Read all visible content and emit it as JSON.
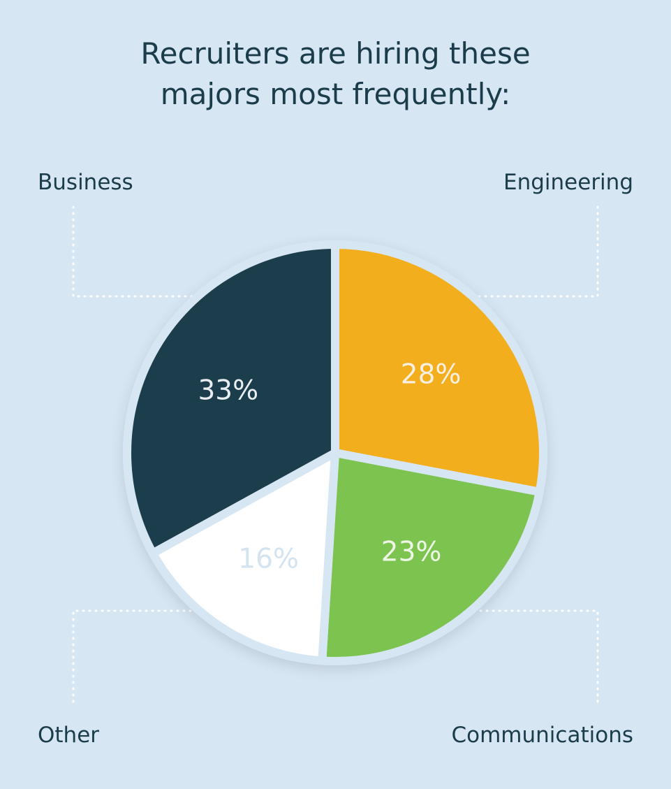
{
  "title": {
    "line1": "Recruiters are hiring these",
    "line2": "majors most frequently:"
  },
  "colors": {
    "background": "#d6e6f3",
    "text": "#1b3c4b",
    "connector": "#ffffff",
    "gap": "#d6e6f3"
  },
  "chart_data": {
    "type": "pie",
    "title": "Recruiters are hiring these majors most frequently:",
    "legend_placement": "corners",
    "slices": [
      {
        "label": "Engineering",
        "value": 28,
        "display": "28%",
        "color": "#f2ae1e",
        "text_color": "#f7efe0",
        "corner": "top-right"
      },
      {
        "label": "Communications",
        "value": 23,
        "display": "23%",
        "color": "#7cc350",
        "text_color": "#eef7e6",
        "corner": "bottom-right"
      },
      {
        "label": "Other",
        "value": 16,
        "display": "16%",
        "color": "#ffffff",
        "text_color": "#d3e3ef",
        "corner": "bottom-left"
      },
      {
        "label": "Business",
        "value": 33,
        "display": "33%",
        "color": "#1b3c4b",
        "text_color": "#e8eef2",
        "corner": "top-left"
      }
    ]
  }
}
